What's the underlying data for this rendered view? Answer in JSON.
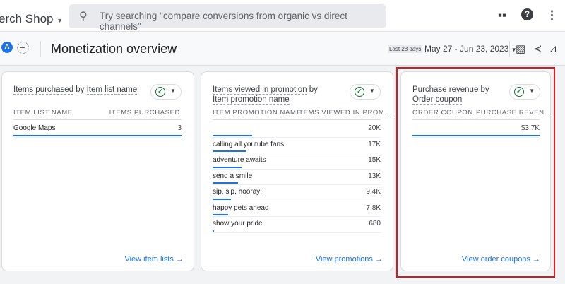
{
  "header": {
    "property": "erch Shop",
    "search_placeholder": "Try searching \"compare conversions from organic vs direct channels\"",
    "icons": [
      "apps-icon",
      "help-icon",
      "more-vert-icon"
    ]
  },
  "subheader": {
    "avatar": "A",
    "title": "Monetization overview",
    "date_badge": "Last 28 days",
    "date_range": "May 27 - Jun 23, 2023"
  },
  "cards": [
    {
      "title_a": "Items purchased",
      "title_b": " by ",
      "title_c": "Item list name",
      "col1": "ITEM LIST NAME",
      "col2": "ITEMS PURCHASED",
      "rows": [
        {
          "name": "Google Maps",
          "value": "3",
          "fraction": 1
        }
      ],
      "link": "View item lists"
    },
    {
      "title_a": "Items viewed in promotion",
      "title_b": " by ",
      "title_c": "Item promotion name",
      "col1": "ITEM PROMOTION NAME",
      "col2": "ITEMS VIEWED IN PROM...",
      "rows": [
        {
          "name": "",
          "value": "20K",
          "fraction": 1
        },
        {
          "name": "calling all youtube fans",
          "value": "17K",
          "fraction": 0.85
        },
        {
          "name": "adventure awaits",
          "value": "15K",
          "fraction": 0.75
        },
        {
          "name": "send a smile",
          "value": "13K",
          "fraction": 0.65
        },
        {
          "name": "sip, sip, hooray!",
          "value": "9.4K",
          "fraction": 0.47
        },
        {
          "name": "happy pets ahead",
          "value": "7.8K",
          "fraction": 0.39
        },
        {
          "name": "show your pride",
          "value": "680",
          "fraction": 0.034
        }
      ],
      "link": "View promotions"
    },
    {
      "title_a": "Purchase revenue",
      "title_b": " by ",
      "title_c": "Order coupon",
      "col1": "ORDER COUPON",
      "col2": "PURCHASE REVEN...",
      "rows": [
        {
          "name": "",
          "value": "$3.7K",
          "fraction": 1
        }
      ],
      "link": "View order coupons"
    }
  ],
  "colors": {
    "accent": "#1a73e8",
    "highlight": "#e0161c",
    "check": "#137333"
  }
}
